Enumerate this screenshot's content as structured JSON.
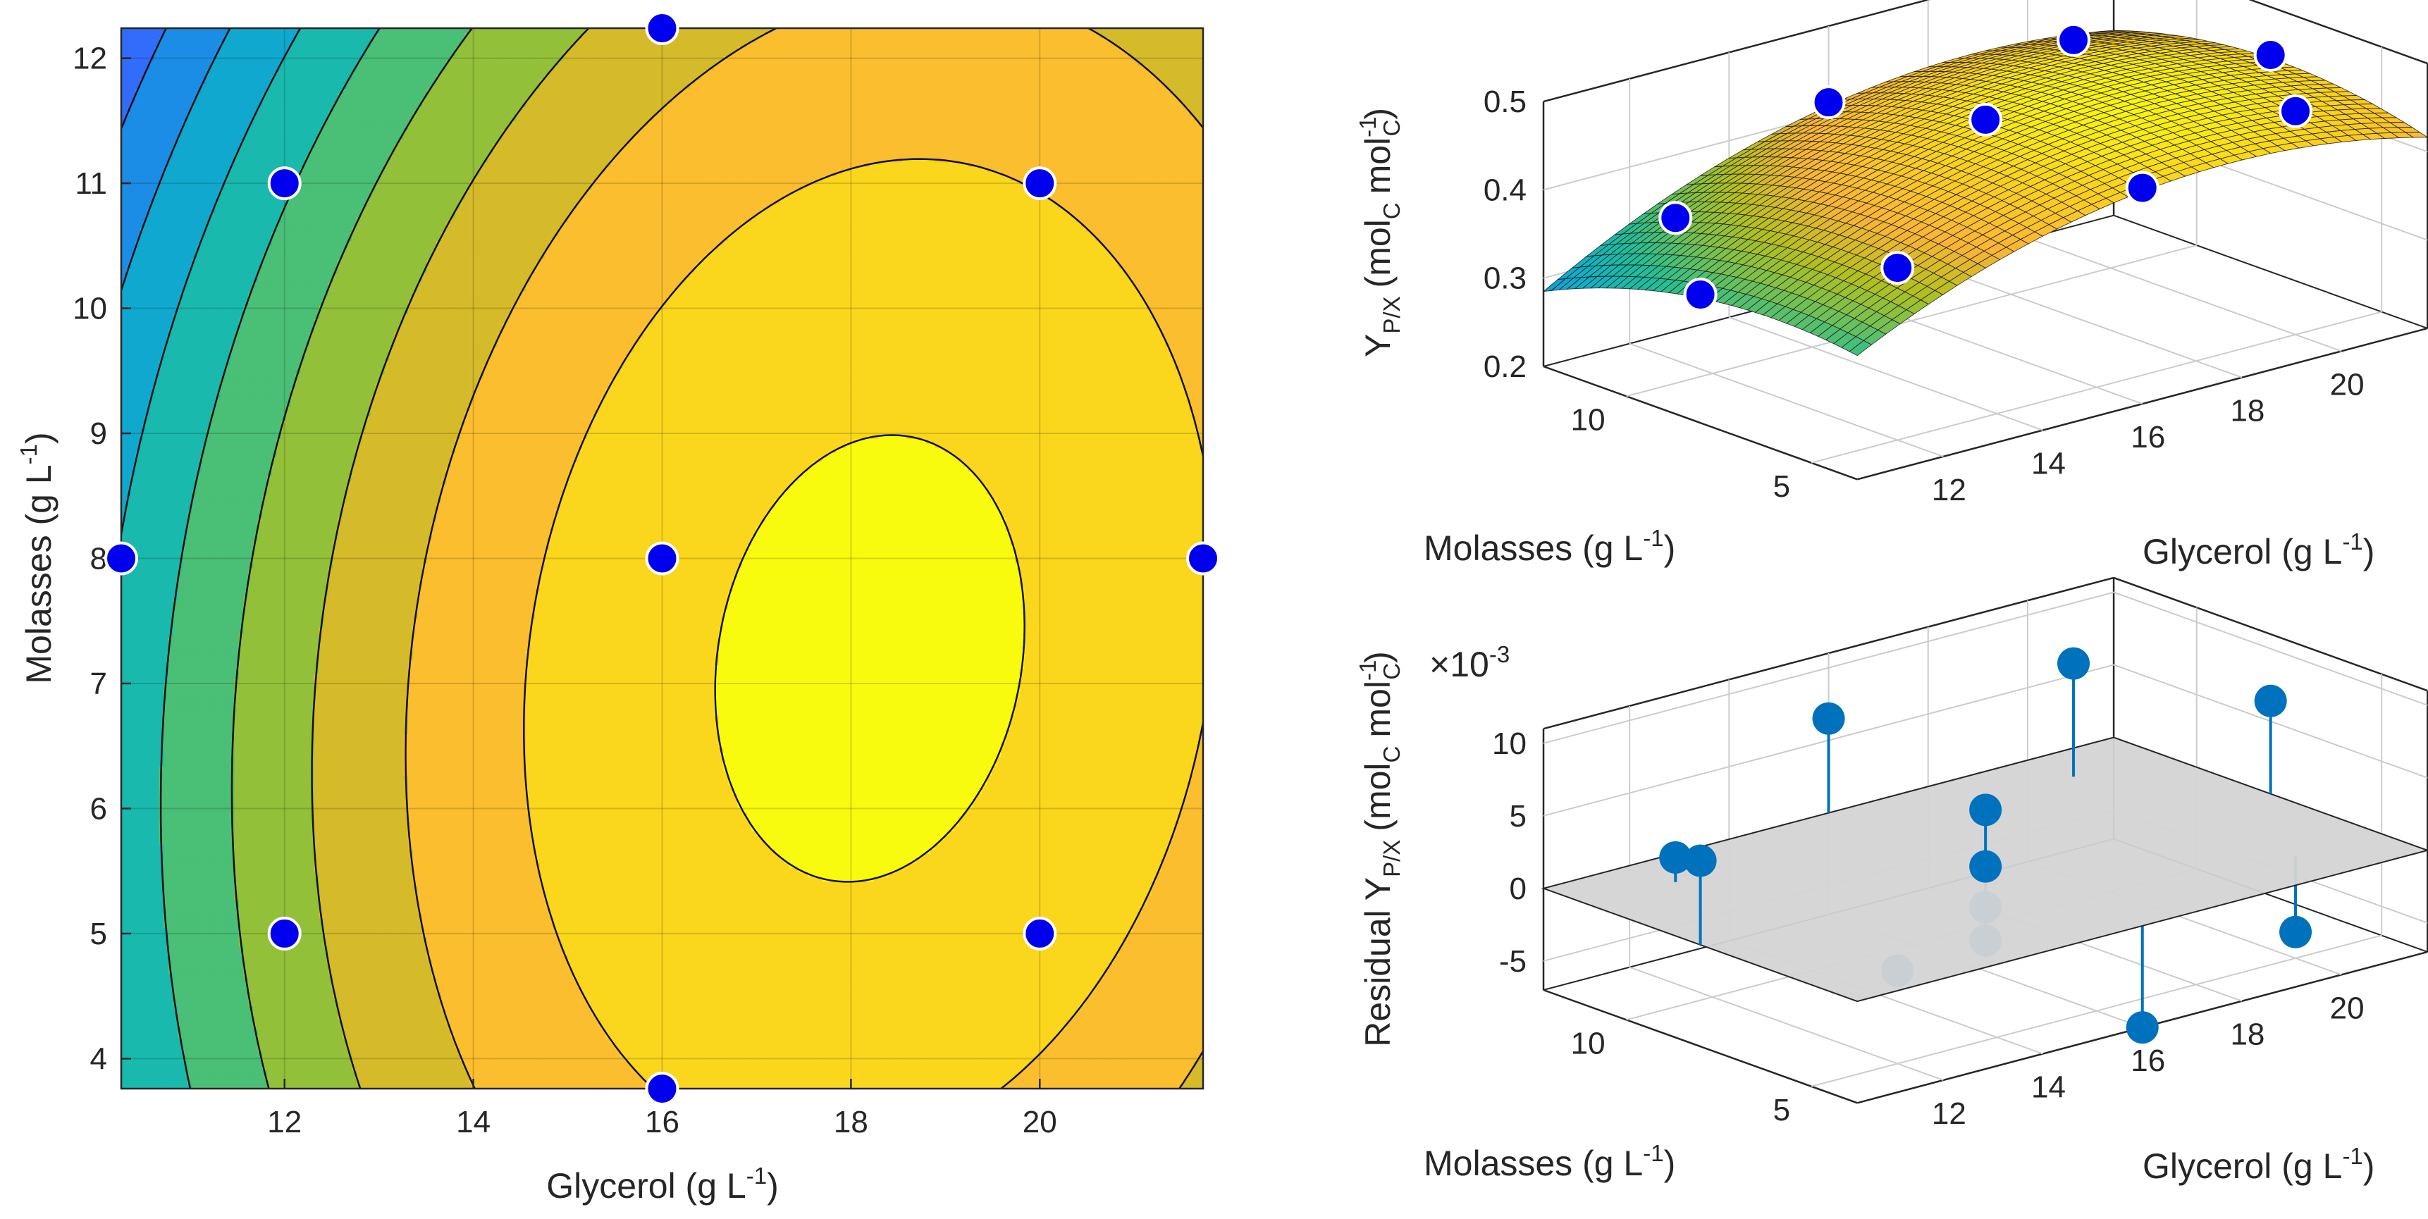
{
  "chart_data": [
    {
      "type": "contour",
      "title": "",
      "xlabel": "Glycerol (g L",
      "xlabel_sup": "-1",
      "xlabel_close": ")",
      "ylabel": "Molasses (g L",
      "ylabel_sup": "-1",
      "ylabel_close": ")",
      "xlim": [
        10.27,
        21.73
      ],
      "ylim": [
        3.76,
        12.24
      ],
      "xticks": [
        12,
        14,
        16,
        18,
        20
      ],
      "yticks": [
        4,
        5,
        6,
        7,
        8,
        9,
        10,
        11,
        12
      ],
      "grid": true,
      "colormap": "parula",
      "levels": [
        0.26,
        0.28,
        0.3,
        0.32,
        0.34,
        0.36,
        0.38,
        0.4,
        0.42,
        0.44,
        0.46
      ],
      "design_points": [
        {
          "x": 16,
          "y": 12.24
        },
        {
          "x": 12,
          "y": 11
        },
        {
          "x": 20,
          "y": 11
        },
        {
          "x": 10.27,
          "y": 8
        },
        {
          "x": 16,
          "y": 8
        },
        {
          "x": 21.73,
          "y": 8
        },
        {
          "x": 12,
          "y": 5
        },
        {
          "x": 20,
          "y": 5
        },
        {
          "x": 16,
          "y": 3.76
        }
      ],
      "point_color": "#0000ee"
    },
    {
      "type": "surface",
      "zlabel": "Y",
      "zlabel_sub": "P/X",
      "zlabel_unit": "(mol",
      "zlabel_sub2": "C",
      "zlabel_unit2": "mol",
      "zlabel_sup": "-1",
      "zlabel_sub3": "C",
      "zlabel_close": ")",
      "xlabel": "Glycerol (g L",
      "xlabel_sup": "-1",
      "xlabel_close": ")",
      "ylabel": "Molasses (g L",
      "ylabel_sup": "-1",
      "ylabel_close": ")",
      "zlim": [
        0.2,
        0.5
      ],
      "zticks": [
        "0.2",
        "0.3",
        "0.4",
        "0.5"
      ],
      "xticks": [
        12,
        14,
        16,
        18,
        20
      ],
      "yticks": [
        5,
        10
      ],
      "grid": true
    },
    {
      "type": "stem3",
      "zlabel": "Residual Y",
      "zlabel_sub": "P/X",
      "zlabel_unit": "(mol",
      "zlabel_sub2": "C",
      "zlabel_unit2": "mol",
      "zlabel_sup": "-1",
      "zlabel_sub3": "C",
      "zlabel_close": ")",
      "exponent_prefix": "×10",
      "exponent_sup": "-3",
      "xlabel": "Glycerol (g L",
      "xlabel_sup": "-1",
      "xlabel_close": ")",
      "ylabel": "Molasses (g L",
      "ylabel_sup": "-1",
      "ylabel_close": ")",
      "zlim": [
        -7,
        11
      ],
      "zticks": [
        "-5",
        "0",
        "5",
        "10"
      ],
      "xticks": [
        12,
        14,
        16,
        18,
        20
      ],
      "yticks": [
        5,
        10
      ],
      "stem_color": "#0072bd",
      "plane_color": "#d4d4d4",
      "residuals_e3": [
        {
          "x": 10.27,
          "y": 8,
          "z": 5.8
        },
        {
          "x": 12,
          "y": 11,
          "z": 1.7
        },
        {
          "x": 12,
          "y": 5,
          "z": -0.6
        },
        {
          "x": 16,
          "y": 12.24,
          "z": 6.5
        },
        {
          "x": 16,
          "y": 8,
          "z": 4.1
        },
        {
          "x": 16,
          "y": 8,
          "z": 0.2
        },
        {
          "x": 16,
          "y": 8,
          "z": -2.6
        },
        {
          "x": 16,
          "y": 8,
          "z": -4.9
        },
        {
          "x": 16,
          "y": 3.76,
          "z": -7.0
        },
        {
          "x": 20,
          "y": 11,
          "z": 7.8
        },
        {
          "x": 20,
          "y": 5,
          "z": -5.2
        },
        {
          "x": 21.73,
          "y": 8,
          "z": 6.4
        }
      ]
    }
  ]
}
